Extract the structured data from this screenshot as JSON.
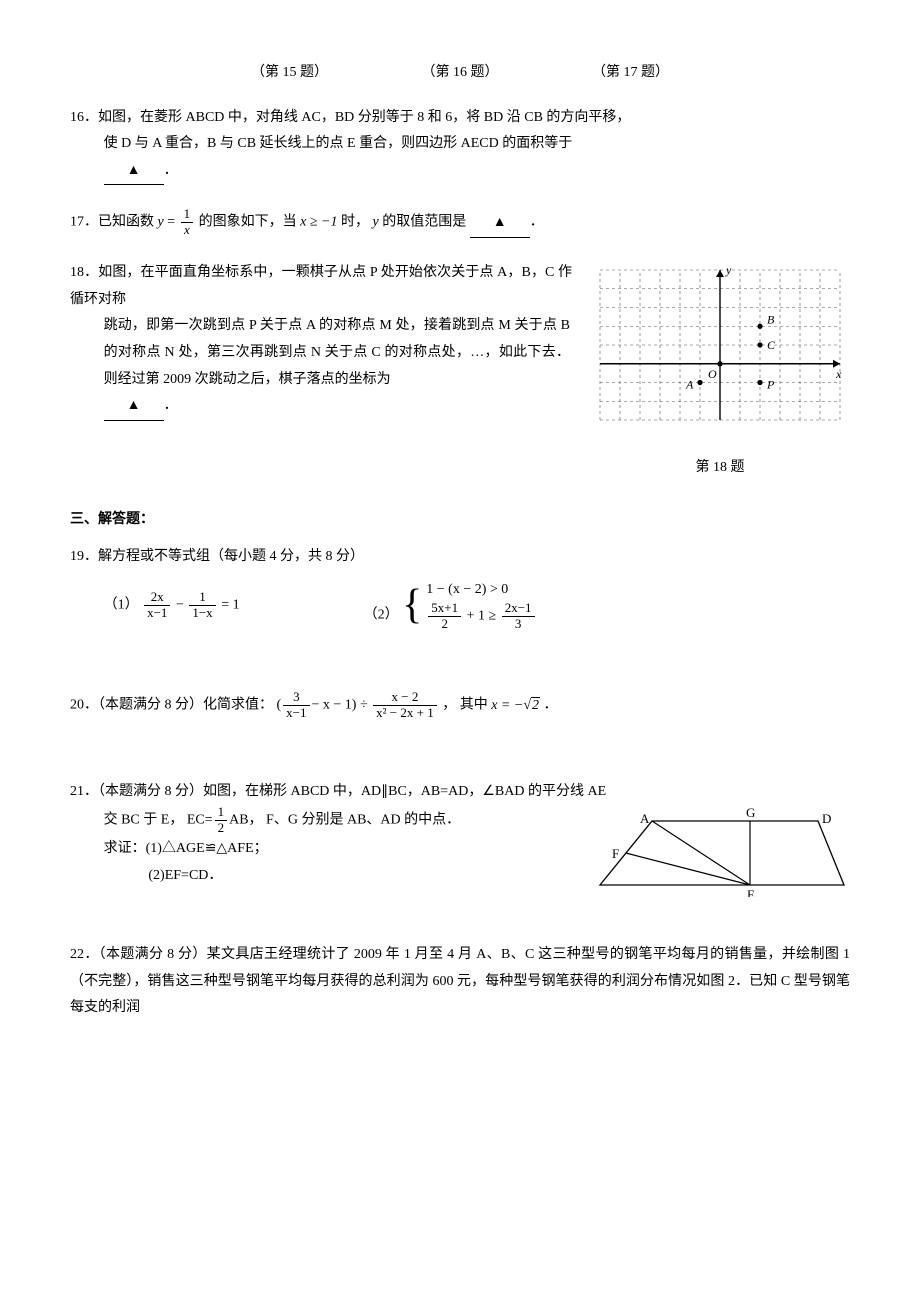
{
  "captions": {
    "c15": "（第 15 题）",
    "c16": "（第 16 题）",
    "c17": "（第 17 题）"
  },
  "q16": {
    "num": "16．",
    "text_a": "如图，在菱形 ABCD 中，对角线 AC，BD 分别等于 8 和 6，将 BD 沿 CB 的方向平移，",
    "text_b": "使 D 与 A 重合，B 与 CB 延长线上的点 E 重合，则四边形 AECD 的面积等于",
    "blank": "▲",
    "text_c": "．"
  },
  "q17": {
    "num": "17．",
    "text_a": "已知函数",
    "y_eq": "y",
    "frac_n": "1",
    "frac_d": "x",
    "text_b": "的图象如下，当",
    "cond": "x ≥ −1",
    "text_c": "时，",
    "yvar": "y",
    "text_d": "的取值范围是",
    "blank": "▲",
    "text_e": "．"
  },
  "q18": {
    "num": "18．",
    "text_a": "如图，在平面直角坐标系中，一颗棋子从点 P 处开始依次关于点 A，B，C 作循环对称",
    "text_b": "跳动，即第一次跳到点 P 关于点 A 的对称点 M 处，接着跳到点 M 关于点 B 的对称点 N 处，第三次再跳到点 N 关于点 C 的对称点处，…，如此下去．则经过第 2009 次跳动之后，棋子落点的坐标为",
    "blank": "▲",
    "text_c": "．",
    "caption": "第 18 题",
    "fig": {
      "xmin": -6,
      "xmax": 6,
      "ymin": -3,
      "ymax": 5,
      "grid_color": "#555",
      "axis_color": "#000",
      "points": {
        "O": [
          0,
          0
        ],
        "A": [
          -1,
          -1
        ],
        "B": [
          2,
          2
        ],
        "C": [
          2,
          1
        ],
        "P": [
          2,
          -1
        ]
      },
      "labels": {
        "y": "y",
        "x": "x",
        "O": "O",
        "A": "A",
        "B": "B",
        "C": "C",
        "P": "P"
      }
    }
  },
  "section3": "三、解答题：",
  "q19": {
    "num": "19．",
    "title": "解方程或不等式组（每小题 4 分，共 8 分）",
    "p1_label": "（1）",
    "p1": {
      "t1_n": "2x",
      "t1_d": "x−1",
      "minus": "−",
      "t2_n": "1",
      "t2_d": "1−x",
      "eq": "= 1"
    },
    "p2_label": "（2）",
    "p2": {
      "line1": "1 − (x − 2) > 0",
      "line2": {
        "t1_n": "5x+1",
        "t1_d": "2",
        "plus": "+ 1 ≥",
        "t2_n": "2x−1",
        "t2_d": "3"
      }
    }
  },
  "q20": {
    "num": "20．",
    "prefix": "（本题满分 8 分）化简求值：",
    "expr": {
      "open": "(",
      "t1_n": "3",
      "t1_d": "x−1",
      "mid": "− x − 1) ÷",
      "t2_n": "x − 2",
      "t2_d": "x² − 2x + 1"
    },
    "where_label": "，  其中",
    "where_val_prefix": "x = −",
    "where_rad": "2",
    "period": "．"
  },
  "q21": {
    "num": "21．",
    "prefix": "（本题满分 8 分）如图，在梯形 ABCD 中，AD∥BC，AB=AD，∠BAD 的平分线 AE",
    "line2a": "交 BC 于 E，  EC=",
    "ec_n": "1",
    "ec_d": "2",
    "line2b": "AB，  F、G 分别是 AB、AD 的中点．",
    "prove": "求证：(1)△AGE≌△AFE；",
    "prove2": "(2)EF=CD．",
    "fig": {
      "A": [
        52,
        10
      ],
      "G": [
        150,
        10
      ],
      "D": [
        218,
        10
      ],
      "F": [
        26,
        42
      ],
      "B": [
        0,
        74
      ],
      "E": [
        150,
        74
      ],
      "C": [
        244,
        74
      ],
      "stroke": "#000"
    }
  },
  "q22": {
    "num": "22．",
    "text": "（本题满分 8 分）某文具店王经理统计了 2009 年 1 月至 4 月 A、B、C 这三种型号的钢笔平均每月的销售量，并绘制图 1（不完整），销售这三种型号钢笔平均每月获得的总利润为 600 元，每种型号钢笔获得的利润分布情况如图 2．已知 C 型号钢笔每支的利润"
  }
}
